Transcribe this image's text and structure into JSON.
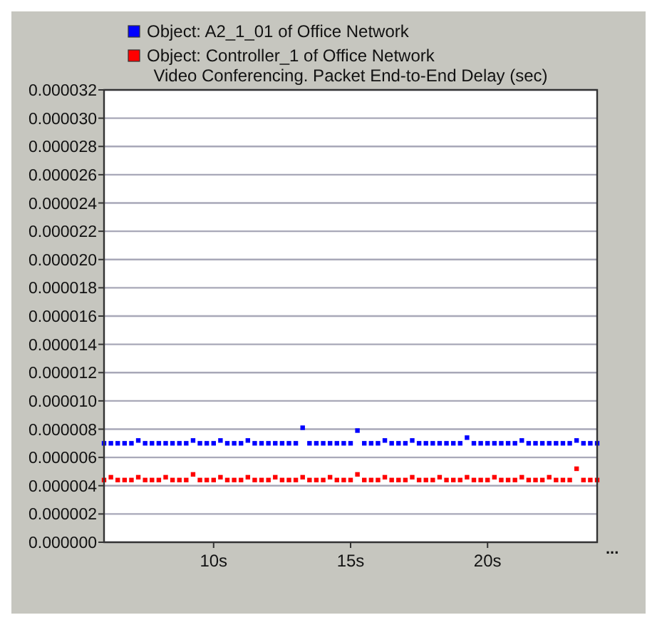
{
  "chart_data": {
    "type": "scatter",
    "title": "Video Conferencing. Packet End-to-End Delay (sec)",
    "legend": "top",
    "grid": "y",
    "marker": "square",
    "annotations": [
      "..."
    ],
    "x": [
      6,
      6.25,
      6.5,
      6.75,
      7,
      7.25,
      7.5,
      7.75,
      8,
      8.25,
      8.5,
      8.75,
      9,
      9.25,
      9.5,
      9.75,
      10,
      10.25,
      10.5,
      10.75,
      11,
      11.25,
      11.5,
      11.75,
      12,
      12.25,
      12.5,
      12.75,
      13,
      13.25,
      13.5,
      13.75,
      14,
      14.25,
      14.5,
      14.75,
      15,
      15.25,
      15.5,
      15.75,
      16,
      16.25,
      16.5,
      16.75,
      17,
      17.25,
      17.5,
      17.75,
      18,
      18.25,
      18.5,
      18.75,
      19,
      19.25,
      19.5,
      19.75,
      20,
      20.25,
      20.5,
      20.75,
      21,
      21.25,
      21.5,
      21.75,
      22,
      22.25,
      22.5,
      22.75,
      23,
      23.25,
      23.5,
      23.75,
      24
    ],
    "xlim": [
      6,
      24
    ],
    "xticks": [
      {
        "value": 10,
        "label": "10s"
      },
      {
        "value": 15,
        "label": "15s"
      },
      {
        "value": 20,
        "label": "20s"
      }
    ],
    "ylim": [
      0,
      3.2e-05
    ],
    "yticks": [
      {
        "value": 0,
        "label": "0.000000"
      },
      {
        "value": 2e-06,
        "label": "0.000002"
      },
      {
        "value": 4e-06,
        "label": "0.000004"
      },
      {
        "value": 6e-06,
        "label": "0.000006"
      },
      {
        "value": 8e-06,
        "label": "0.000008"
      },
      {
        "value": 1e-05,
        "label": "0.000010"
      },
      {
        "value": 1.2e-05,
        "label": "0.000012"
      },
      {
        "value": 1.4e-05,
        "label": "0.000014"
      },
      {
        "value": 1.6e-05,
        "label": "0.000016"
      },
      {
        "value": 1.8e-05,
        "label": "0.000018"
      },
      {
        "value": 2e-05,
        "label": "0.000020"
      },
      {
        "value": 2.2e-05,
        "label": "0.000022"
      },
      {
        "value": 2.4e-05,
        "label": "0.000024"
      },
      {
        "value": 2.6e-05,
        "label": "0.000026"
      },
      {
        "value": 2.8e-05,
        "label": "0.000028"
      },
      {
        "value": 3e-05,
        "label": "0.000030"
      },
      {
        "value": 3.2e-05,
        "label": "0.000032"
      }
    ],
    "series": [
      {
        "name": "Object: A2_1_01 of Office Network",
        "color": "#0000ff",
        "values": [
          7e-06,
          7e-06,
          7e-06,
          7e-06,
          7e-06,
          7.2e-06,
          7e-06,
          7e-06,
          7e-06,
          7e-06,
          7e-06,
          7e-06,
          7e-06,
          7.2e-06,
          7e-06,
          7e-06,
          7e-06,
          7.2e-06,
          7e-06,
          7e-06,
          7e-06,
          7.2e-06,
          7e-06,
          7e-06,
          7e-06,
          7e-06,
          7e-06,
          7e-06,
          7e-06,
          8.1e-06,
          7e-06,
          7e-06,
          7e-06,
          7e-06,
          7e-06,
          7e-06,
          7e-06,
          7.9e-06,
          7e-06,
          7e-06,
          7e-06,
          7.2e-06,
          7e-06,
          7e-06,
          7e-06,
          7.2e-06,
          7e-06,
          7e-06,
          7e-06,
          7e-06,
          7e-06,
          7e-06,
          7e-06,
          7.4e-06,
          7e-06,
          7e-06,
          7e-06,
          7e-06,
          7e-06,
          7e-06,
          7e-06,
          7.2e-06,
          7e-06,
          7e-06,
          7e-06,
          7e-06,
          7e-06,
          7e-06,
          7e-06,
          7.2e-06,
          7e-06,
          7e-06,
          7e-06
        ]
      },
      {
        "name": "Object: Controller_1 of Office Network",
        "color": "#ff0000",
        "values": [
          4.4e-06,
          4.6e-06,
          4.4e-06,
          4.4e-06,
          4.4e-06,
          4.6e-06,
          4.4e-06,
          4.4e-06,
          4.4e-06,
          4.6e-06,
          4.4e-06,
          4.4e-06,
          4.4e-06,
          4.8e-06,
          4.4e-06,
          4.4e-06,
          4.4e-06,
          4.6e-06,
          4.4e-06,
          4.4e-06,
          4.4e-06,
          4.6e-06,
          4.4e-06,
          4.4e-06,
          4.4e-06,
          4.6e-06,
          4.4e-06,
          4.4e-06,
          4.4e-06,
          4.6e-06,
          4.4e-06,
          4.4e-06,
          4.4e-06,
          4.6e-06,
          4.4e-06,
          4.4e-06,
          4.4e-06,
          4.8e-06,
          4.4e-06,
          4.4e-06,
          4.4e-06,
          4.6e-06,
          4.4e-06,
          4.4e-06,
          4.4e-06,
          4.6e-06,
          4.4e-06,
          4.4e-06,
          4.4e-06,
          4.6e-06,
          4.4e-06,
          4.4e-06,
          4.4e-06,
          4.6e-06,
          4.4e-06,
          4.4e-06,
          4.4e-06,
          4.6e-06,
          4.4e-06,
          4.4e-06,
          4.4e-06,
          4.6e-06,
          4.4e-06,
          4.4e-06,
          4.4e-06,
          4.6e-06,
          4.4e-06,
          4.4e-06,
          4.4e-06,
          5.2e-06,
          4.4e-06,
          4.4e-06,
          4.4e-06
        ]
      }
    ]
  }
}
